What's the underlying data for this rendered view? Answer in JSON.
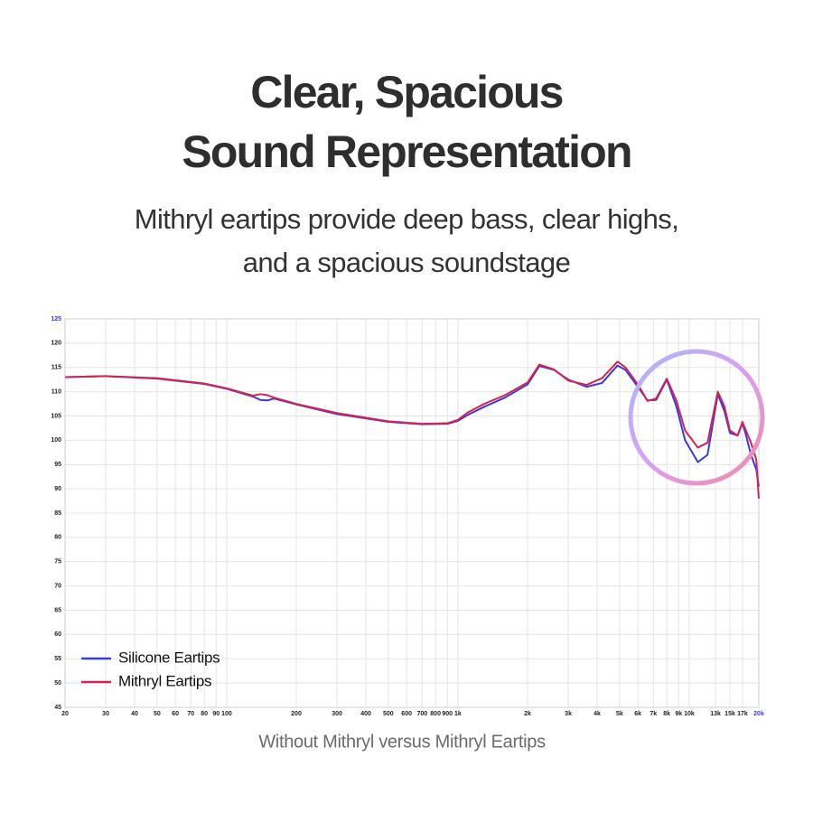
{
  "chart_data": {
    "type": "line",
    "title": [
      "Clear, Spacious",
      "Sound Representation"
    ],
    "subtitle": [
      "Mithryl eartips provide deep bass, clear highs,",
      "and a spacious soundstage"
    ],
    "caption": "Without Mithryl versus Mithryl Eartips",
    "x_scale": "log",
    "grid": true,
    "legend": "lower left",
    "x": [
      20,
      30,
      50,
      80,
      100,
      130,
      140,
      150,
      160,
      200,
      300,
      500,
      700,
      900,
      1000,
      1100,
      1300,
      1600,
      2000,
      2250,
      2600,
      3000,
      3600,
      4200,
      4900,
      5300,
      6000,
      6600,
      7200,
      8000,
      8800,
      9600,
      10900,
      12000,
      13300,
      14200,
      15000,
      16200,
      17000,
      17500,
      18500,
      19500,
      20000
    ],
    "series": [
      {
        "name": "Silicone Eartips",
        "color": "#3a3ae0",
        "values": [
          113,
          113.2,
          112.7,
          111.6,
          110.6,
          109,
          108.3,
          108.2,
          108.6,
          107.4,
          105.4,
          103.8,
          103.3,
          103.4,
          104,
          105.2,
          106.9,
          108.8,
          111.5,
          115.3,
          114.5,
          112.5,
          111,
          111.8,
          115.4,
          114.5,
          111,
          108.2,
          108.3,
          112.5,
          107,
          100,
          95.5,
          97,
          109.5,
          106,
          101.5,
          101,
          103.5,
          101.5,
          97,
          94,
          90.5
        ]
      },
      {
        "name": "Mithryl Eartips",
        "color": "#d42454",
        "values": [
          113,
          113.2,
          112.8,
          111.7,
          110.7,
          109.2,
          109.5,
          109.3,
          108.8,
          107.5,
          105.6,
          103.9,
          103.4,
          103.5,
          104.2,
          105.7,
          107.5,
          109.3,
          111.9,
          115.6,
          114.6,
          112.3,
          111.4,
          112.8,
          116.2,
          115,
          111.5,
          108.1,
          108.6,
          112.7,
          108.2,
          102,
          98.5,
          99.5,
          110,
          107,
          102,
          101,
          103.8,
          102.3,
          99.5,
          96,
          88
        ]
      }
    ],
    "xlim": [
      20,
      20000
    ],
    "ylim": [
      45,
      125
    ],
    "yticks": [
      45,
      50,
      55,
      60,
      65,
      70,
      75,
      80,
      85,
      90,
      95,
      100,
      105,
      110,
      115,
      120,
      125
    ],
    "xticks": [
      20,
      30,
      40,
      50,
      60,
      70,
      80,
      90,
      100,
      200,
      300,
      400,
      500,
      600,
      700,
      800,
      900,
      {
        "value": 1000,
        "label": "1k"
      },
      {
        "value": 2000,
        "label": "2k"
      },
      {
        "value": 3000,
        "label": "3k"
      },
      {
        "value": 4000,
        "label": "4k"
      },
      {
        "value": 5000,
        "label": "5k"
      },
      {
        "value": 6000,
        "label": "6k"
      },
      {
        "value": 7000,
        "label": "7k"
      },
      {
        "value": 8000,
        "label": "8k"
      },
      {
        "value": 9000,
        "label": "9k"
      },
      {
        "value": 10000,
        "label": "10k"
      },
      {
        "value": 13000,
        "label": "13k"
      },
      {
        "value": 15000,
        "label": "15k"
      },
      {
        "value": 17000,
        "label": "17k"
      },
      {
        "value": 20000,
        "label": "20k"
      }
    ]
  }
}
